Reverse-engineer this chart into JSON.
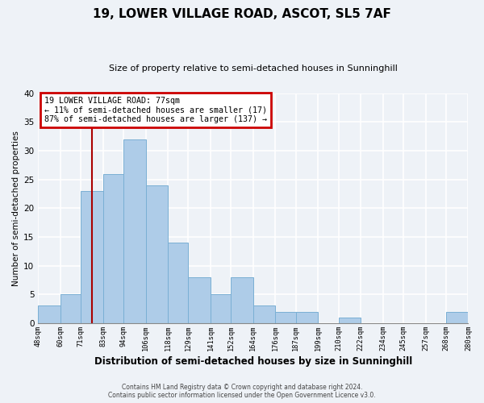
{
  "title": "19, LOWER VILLAGE ROAD, ASCOT, SL5 7AF",
  "subtitle": "Size of property relative to semi-detached houses in Sunninghill",
  "xlabel": "Distribution of semi-detached houses by size in Sunninghill",
  "ylabel": "Number of semi-detached properties",
  "bins": [
    48,
    60,
    71,
    83,
    94,
    106,
    118,
    129,
    141,
    152,
    164,
    176,
    187,
    199,
    210,
    222,
    234,
    245,
    257,
    268,
    280
  ],
  "bin_labels": [
    "48sqm",
    "60sqm",
    "71sqm",
    "83sqm",
    "94sqm",
    "106sqm",
    "118sqm",
    "129sqm",
    "141sqm",
    "152sqm",
    "164sqm",
    "176sqm",
    "187sqm",
    "199sqm",
    "210sqm",
    "222sqm",
    "234sqm",
    "245sqm",
    "257sqm",
    "268sqm",
    "280sqm"
  ],
  "bar_heights": [
    3,
    5,
    23,
    26,
    32,
    24,
    14,
    8,
    5,
    8,
    3,
    2,
    2,
    0,
    1,
    0,
    0,
    0,
    0,
    2
  ],
  "bar_color": "#aecce8",
  "bar_edge_color": "#7aafd4",
  "property_size": 77,
  "property_label": "19 LOWER VILLAGE ROAD: 77sqm",
  "pct_smaller": 11,
  "count_smaller": 17,
  "pct_larger": 87,
  "count_larger": 137,
  "vline_color": "#aa0000",
  "annotation_box_color": "#cc0000",
  "ylim": [
    0,
    40
  ],
  "yticks": [
    0,
    5,
    10,
    15,
    20,
    25,
    30,
    35,
    40
  ],
  "footer_line1": "Contains HM Land Registry data © Crown copyright and database right 2024.",
  "footer_line2": "Contains public sector information licensed under the Open Government Licence v3.0.",
  "bg_color": "#eef2f7",
  "grid_color": "#ffffff"
}
